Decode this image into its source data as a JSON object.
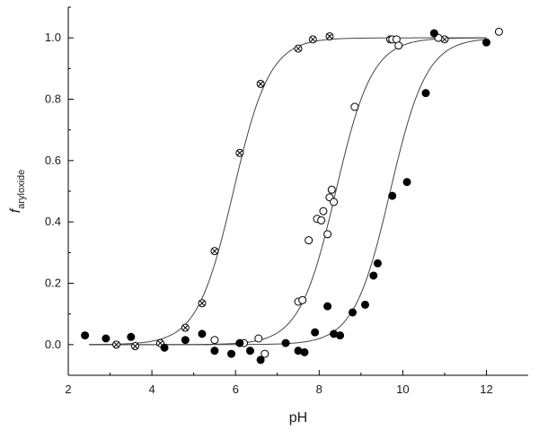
{
  "chart_data": {
    "type": "scatter",
    "xlabel": "pH",
    "ylabel_main": "f",
    "ylabel_sub": "aryloxide",
    "xlim": [
      2,
      13
    ],
    "ylim": [
      -0.1,
      1.1
    ],
    "xticks": [
      2,
      4,
      6,
      8,
      10,
      12
    ],
    "yticks": [
      0.0,
      0.2,
      0.4,
      0.6,
      0.8,
      1.0
    ],
    "xtick_labels": [
      "2",
      "4",
      "6",
      "8",
      "10",
      "12"
    ],
    "ytick_labels": [
      "0.0",
      "0.2",
      "0.4",
      "0.6",
      "0.8",
      "1.0"
    ],
    "grid": false,
    "series": [
      {
        "marker": "crossed-circle",
        "fit_pKa": 5.95,
        "points": [
          [
            3.15,
            0.0
          ],
          [
            3.6,
            -0.005
          ],
          [
            4.2,
            0.005
          ],
          [
            4.8,
            0.055
          ],
          [
            5.2,
            0.135
          ],
          [
            5.5,
            0.305
          ],
          [
            6.1,
            0.625
          ],
          [
            6.6,
            0.85
          ],
          [
            7.5,
            0.965
          ],
          [
            7.85,
            0.995
          ],
          [
            8.25,
            1.005
          ],
          [
            9.7,
            0.995
          ],
          [
            11.0,
            0.995
          ]
        ]
      },
      {
        "marker": "open-circle",
        "fit_pKa": 8.4,
        "points": [
          [
            5.5,
            0.015
          ],
          [
            6.2,
            0.005
          ],
          [
            6.55,
            0.02
          ],
          [
            6.7,
            -0.03
          ],
          [
            7.5,
            0.14
          ],
          [
            7.6,
            0.145
          ],
          [
            7.75,
            0.34
          ],
          [
            7.95,
            0.41
          ],
          [
            8.05,
            0.405
          ],
          [
            8.1,
            0.435
          ],
          [
            8.2,
            0.36
          ],
          [
            8.25,
            0.48
          ],
          [
            8.3,
            0.505
          ],
          [
            8.35,
            0.465
          ],
          [
            8.85,
            0.775
          ],
          [
            9.75,
            0.995
          ],
          [
            9.85,
            0.995
          ],
          [
            9.9,
            0.975
          ],
          [
            10.85,
            1.0
          ],
          [
            12.3,
            1.02
          ]
        ]
      },
      {
        "marker": "filled-circle",
        "fit_pKa": 9.7,
        "points": [
          [
            2.4,
            0.03
          ],
          [
            2.9,
            0.02
          ],
          [
            3.5,
            0.025
          ],
          [
            4.3,
            -0.01
          ],
          [
            4.8,
            0.015
          ],
          [
            5.2,
            0.035
          ],
          [
            5.5,
            -0.02
          ],
          [
            5.9,
            -0.03
          ],
          [
            6.1,
            0.005
          ],
          [
            6.35,
            -0.02
          ],
          [
            6.6,
            -0.05
          ],
          [
            7.2,
            0.005
          ],
          [
            7.5,
            -0.02
          ],
          [
            7.65,
            -0.025
          ],
          [
            7.9,
            0.04
          ],
          [
            8.2,
            0.125
          ],
          [
            8.35,
            0.035
          ],
          [
            8.5,
            0.03
          ],
          [
            8.8,
            0.105
          ],
          [
            9.1,
            0.13
          ],
          [
            9.3,
            0.225
          ],
          [
            9.4,
            0.265
          ],
          [
            9.75,
            0.485
          ],
          [
            10.1,
            0.53
          ],
          [
            10.55,
            0.82
          ],
          [
            10.75,
            1.015
          ],
          [
            12.0,
            0.985
          ]
        ]
      }
    ]
  }
}
